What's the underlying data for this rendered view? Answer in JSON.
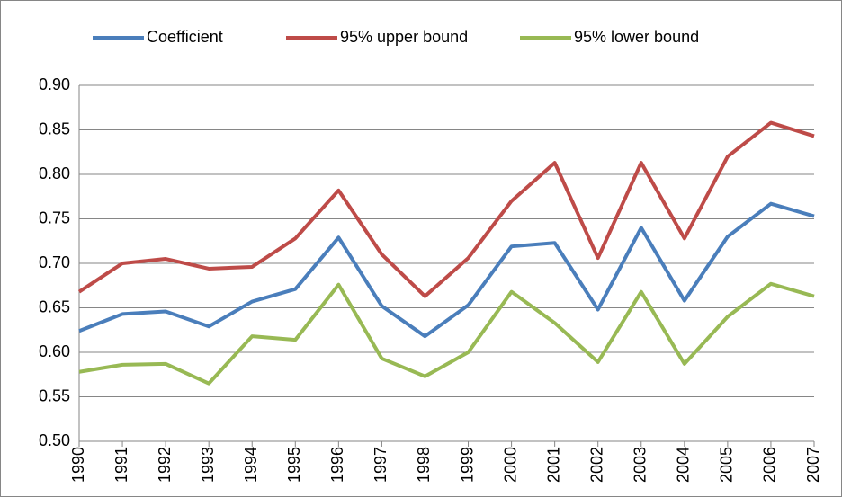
{
  "chart_data": {
    "type": "line",
    "categories": [
      "1990",
      "1991",
      "1992",
      "1993",
      "1994",
      "1995",
      "1996",
      "1997",
      "1998",
      "1999",
      "2000",
      "2001",
      "2002",
      "2003",
      "2004",
      "2005",
      "2006",
      "2007"
    ],
    "series": [
      {
        "name": "Coefficient",
        "color": "#4a7ebb",
        "values": [
          0.624,
          0.643,
          0.646,
          0.629,
          0.657,
          0.671,
          0.729,
          0.652,
          0.618,
          0.653,
          0.719,
          0.723,
          0.648,
          0.74,
          0.658,
          0.73,
          0.767,
          0.753
        ]
      },
      {
        "name": "95% upper bound",
        "color": "#be4b48",
        "values": [
          0.668,
          0.7,
          0.705,
          0.694,
          0.696,
          0.728,
          0.782,
          0.71,
          0.663,
          0.706,
          0.77,
          0.813,
          0.706,
          0.813,
          0.728,
          0.82,
          0.858,
          0.843
        ]
      },
      {
        "name": "95% lower bound",
        "color": "#98b954",
        "values": [
          0.578,
          0.586,
          0.587,
          0.565,
          0.618,
          0.614,
          0.676,
          0.593,
          0.573,
          0.6,
          0.668,
          0.633,
          0.589,
          0.668,
          0.587,
          0.64,
          0.677,
          0.663
        ]
      }
    ],
    "ylim": [
      0.5,
      0.9
    ],
    "yticks": [
      {
        "value": 0.5,
        "label": "0.50"
      },
      0.55,
      {
        "value": 0.6,
        "label": "0.60"
      },
      0.65,
      {
        "value": 0.7,
        "label": "0.70"
      },
      0.75,
      {
        "value": 0.8,
        "label": "0.80"
      },
      0.85,
      {
        "value": 0.9,
        "label": "0.90"
      }
    ],
    "grid": true,
    "legend": "top"
  }
}
